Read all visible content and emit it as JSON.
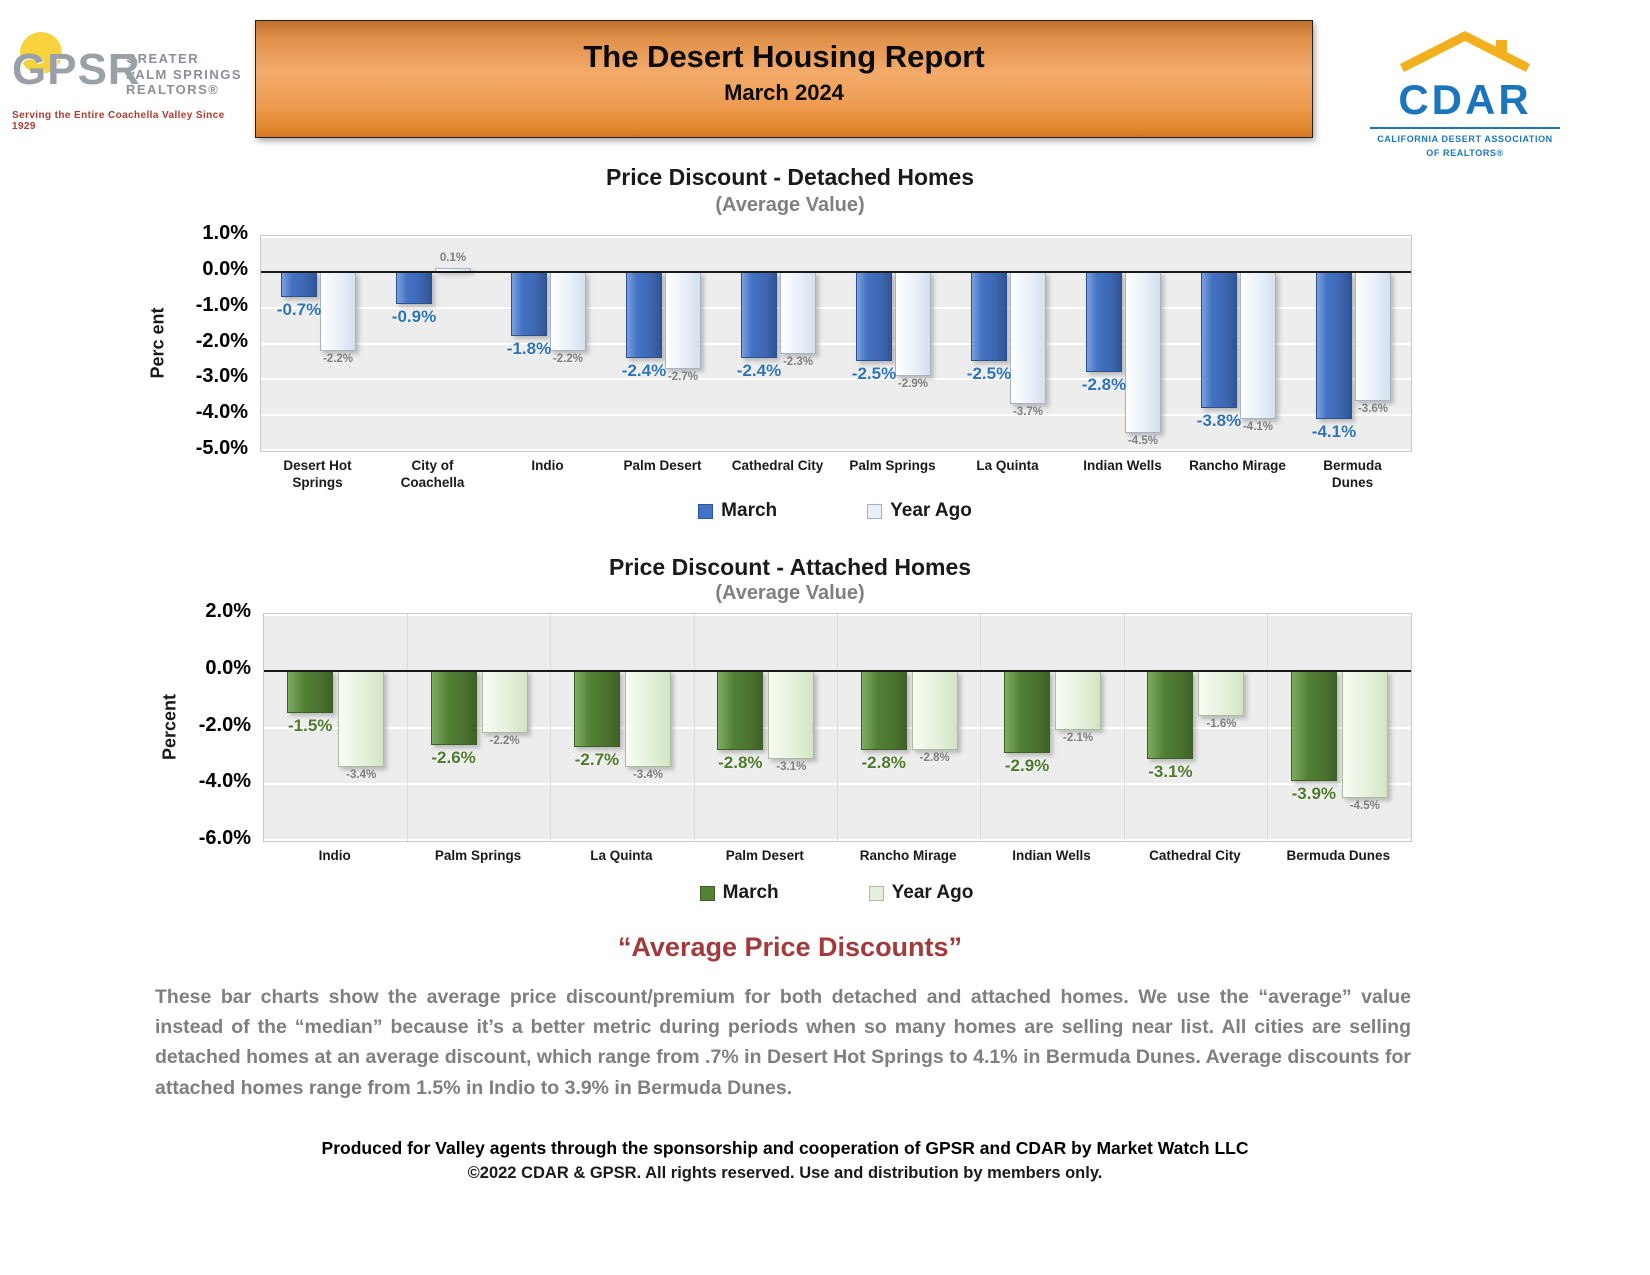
{
  "header": {
    "banner": {
      "title": "The Desert Housing Report",
      "subtitle": "March 2024"
    },
    "gpsr": {
      "acronym": "GPSR",
      "name_lines": [
        "GREATER",
        "PALM SPRINGS",
        "REALTORS®"
      ],
      "tagline": "Serving the Entire Coachella Valley Since 1929"
    },
    "cdar": {
      "acronym": "CDAR",
      "sub_lines": [
        "CALIFORNIA DESERT ASSOCIATION",
        "OF REALTORS®"
      ]
    }
  },
  "chart_data": [
    {
      "type": "bar",
      "title": "Price Discount - Detached Homes",
      "subtitle": "(Average Value)",
      "ylabel": "Perc ent",
      "ylim": [
        -5.0,
        1.0
      ],
      "yticks": [
        1.0,
        0.0,
        -1.0,
        -2.0,
        -3.0,
        -4.0,
        -5.0
      ],
      "grid": true,
      "legend_position": "bottom",
      "categories": [
        "Desert Hot Springs",
        "City of Coachella",
        "Indio",
        "Palm Desert",
        "Cathedral City",
        "Palm Springs",
        "La Quinta",
        "Indian Wells",
        "Rancho Mirage",
        "Bermuda Dunes"
      ],
      "series": [
        {
          "name": "March",
          "color": "#4472C4",
          "values": [
            -0.7,
            -0.9,
            -1.8,
            -2.4,
            -2.4,
            -2.5,
            -2.5,
            -2.8,
            -3.8,
            -4.1
          ],
          "labels": [
            "-0.7%",
            "-0.9%",
            "-1.8%",
            "-2.4%",
            "-2.4%",
            "-2.5%",
            "-2.5%",
            "-2.8%",
            "-3.8%",
            "-4.1%"
          ]
        },
        {
          "name": "Year Ago",
          "color": "#E9F0F9",
          "values": [
            -2.2,
            0.1,
            -2.2,
            -2.7,
            -2.3,
            -2.9,
            -3.7,
            -4.5,
            -4.1,
            -3.6
          ],
          "labels": [
            "-2.2%",
            "0.1%",
            "-2.2%",
            "-2.7%",
            "-2.3%",
            "-2.9%",
            "-3.7%",
            "-4.5%",
            "-4.1%",
            "-3.6%"
          ]
        }
      ]
    },
    {
      "type": "bar",
      "title": "Price Discount - Attached Homes",
      "subtitle": "(Average Value)",
      "ylabel": "Percent",
      "ylim": [
        -6.0,
        2.0
      ],
      "yticks": [
        2.0,
        0.0,
        -2.0,
        -4.0,
        -6.0
      ],
      "grid": true,
      "legend_position": "bottom",
      "categories": [
        "Indio",
        "Palm Springs",
        "La Quinta",
        "Palm Desert",
        "Rancho Mirage",
        "Indian Wells",
        "Cathedral City",
        "Bermuda Dunes"
      ],
      "series": [
        {
          "name": "March",
          "color": "#538135",
          "values": [
            -1.5,
            -2.6,
            -2.7,
            -2.8,
            -2.8,
            -2.9,
            -3.1,
            -3.9
          ],
          "labels": [
            "-1.5%",
            "-2.6%",
            "-2.7%",
            "-2.8%",
            "-2.8%",
            "-2.9%",
            "-3.1%",
            "-3.9%"
          ]
        },
        {
          "name": "Year Ago",
          "color": "#E5F1DC",
          "values": [
            -3.4,
            -2.2,
            -3.4,
            -3.1,
            -2.8,
            -2.1,
            -1.6,
            -4.5
          ],
          "labels": [
            "-3.4%",
            "-2.2%",
            "-3.4%",
            "-3.1%",
            "-2.8%",
            "-2.1%",
            "-1.6%",
            "-4.5%"
          ]
        }
      ]
    }
  ],
  "callout": {
    "heading": "“Average Price Discounts”",
    "body": "These bar charts show the average price discount/premium for both detached and attached homes. We use the “average” value instead of the “median” because it’s a better metric during periods when so many homes are selling near list. All cities are selling detached homes at an average discount, which range from .7% in Desert Hot Springs to 4.1% in Bermuda Dunes. Average discounts for attached homes range from 1.5% in Indio to 3.9% in Bermuda Dunes."
  },
  "footer": {
    "line1": "Produced for Valley agents through the sponsorship and cooperation of GPSR and CDAR by Market Watch LLC",
    "line2": "©2022 CDAR & GPSR.  All rights reserved.  Use and distribution by members only."
  }
}
